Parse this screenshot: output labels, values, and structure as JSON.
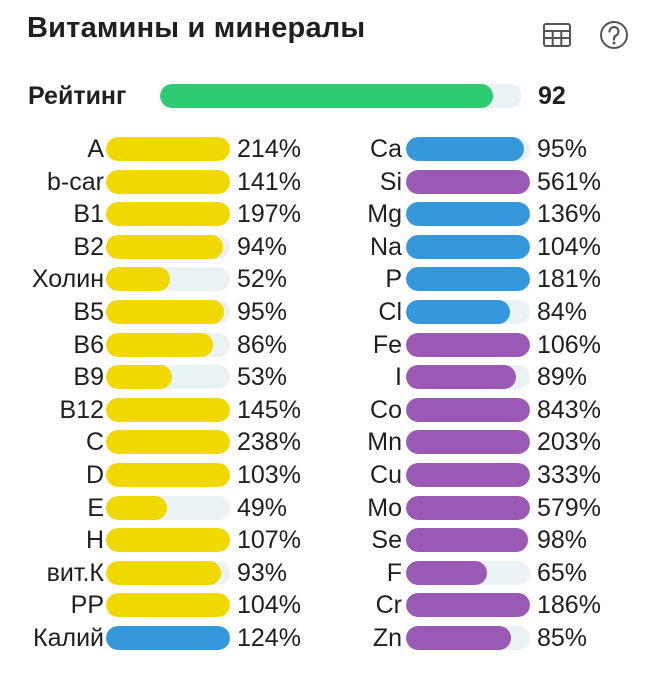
{
  "header": {
    "title": "Витамины и минералы",
    "table_icon": "table-icon",
    "help_icon": "help-icon"
  },
  "rating": {
    "label": "Рейтинг",
    "value": "92",
    "fill_percent": 92
  },
  "colors": {
    "vitamin": "#f0d800",
    "macro_mineral": "#3498db",
    "trace_mineral": "#9b59b6",
    "rating": "#2ecc71",
    "track": "#e9f3f6"
  },
  "vitamins": [
    {
      "name": "A",
      "percent": "214%",
      "fill": 100,
      "color": "vitamin"
    },
    {
      "name": "b-car",
      "percent": "141%",
      "fill": 100,
      "color": "vitamin"
    },
    {
      "name": "B1",
      "percent": "197%",
      "fill": 100,
      "color": "vitamin"
    },
    {
      "name": "B2",
      "percent": "94%",
      "fill": 94,
      "color": "vitamin"
    },
    {
      "name": "Холин",
      "percent": "52%",
      "fill": 52,
      "color": "vitamin"
    },
    {
      "name": "B5",
      "percent": "95%",
      "fill": 95,
      "color": "vitamin"
    },
    {
      "name": "B6",
      "percent": "86%",
      "fill": 86,
      "color": "vitamin"
    },
    {
      "name": "B9",
      "percent": "53%",
      "fill": 53,
      "color": "vitamin"
    },
    {
      "name": "B12",
      "percent": "145%",
      "fill": 100,
      "color": "vitamin"
    },
    {
      "name": "C",
      "percent": "238%",
      "fill": 100,
      "color": "vitamin"
    },
    {
      "name": "D",
      "percent": "103%",
      "fill": 100,
      "color": "vitamin"
    },
    {
      "name": "E",
      "percent": "49%",
      "fill": 49,
      "color": "vitamin"
    },
    {
      "name": "H",
      "percent": "107%",
      "fill": 100,
      "color": "vitamin"
    },
    {
      "name": "вит.К",
      "percent": "93%",
      "fill": 93,
      "color": "vitamin"
    },
    {
      "name": "PP",
      "percent": "104%",
      "fill": 100,
      "color": "vitamin"
    },
    {
      "name": "Калий",
      "percent": "124%",
      "fill": 100,
      "color": "macro_mineral"
    }
  ],
  "minerals": [
    {
      "name": "Ca",
      "percent": "95%",
      "fill": 95,
      "color": "macro_mineral"
    },
    {
      "name": "Si",
      "percent": "561%",
      "fill": 100,
      "color": "trace_mineral"
    },
    {
      "name": "Mg",
      "percent": "136%",
      "fill": 100,
      "color": "macro_mineral"
    },
    {
      "name": "Na",
      "percent": "104%",
      "fill": 100,
      "color": "macro_mineral"
    },
    {
      "name": "P",
      "percent": "181%",
      "fill": 100,
      "color": "macro_mineral"
    },
    {
      "name": "Cl",
      "percent": "84%",
      "fill": 84,
      "color": "macro_mineral"
    },
    {
      "name": "Fe",
      "percent": "106%",
      "fill": 100,
      "color": "trace_mineral"
    },
    {
      "name": "I",
      "percent": "89%",
      "fill": 89,
      "color": "trace_mineral"
    },
    {
      "name": "Co",
      "percent": "843%",
      "fill": 100,
      "color": "trace_mineral"
    },
    {
      "name": "Mn",
      "percent": "203%",
      "fill": 100,
      "color": "trace_mineral"
    },
    {
      "name": "Cu",
      "percent": "333%",
      "fill": 100,
      "color": "trace_mineral"
    },
    {
      "name": "Mo",
      "percent": "579%",
      "fill": 100,
      "color": "trace_mineral"
    },
    {
      "name": "Se",
      "percent": "98%",
      "fill": 98,
      "color": "trace_mineral"
    },
    {
      "name": "F",
      "percent": "65%",
      "fill": 65,
      "color": "trace_mineral"
    },
    {
      "name": "Cr",
      "percent": "186%",
      "fill": 100,
      "color": "trace_mineral"
    },
    {
      "name": "Zn",
      "percent": "85%",
      "fill": 85,
      "color": "trace_mineral"
    }
  ]
}
